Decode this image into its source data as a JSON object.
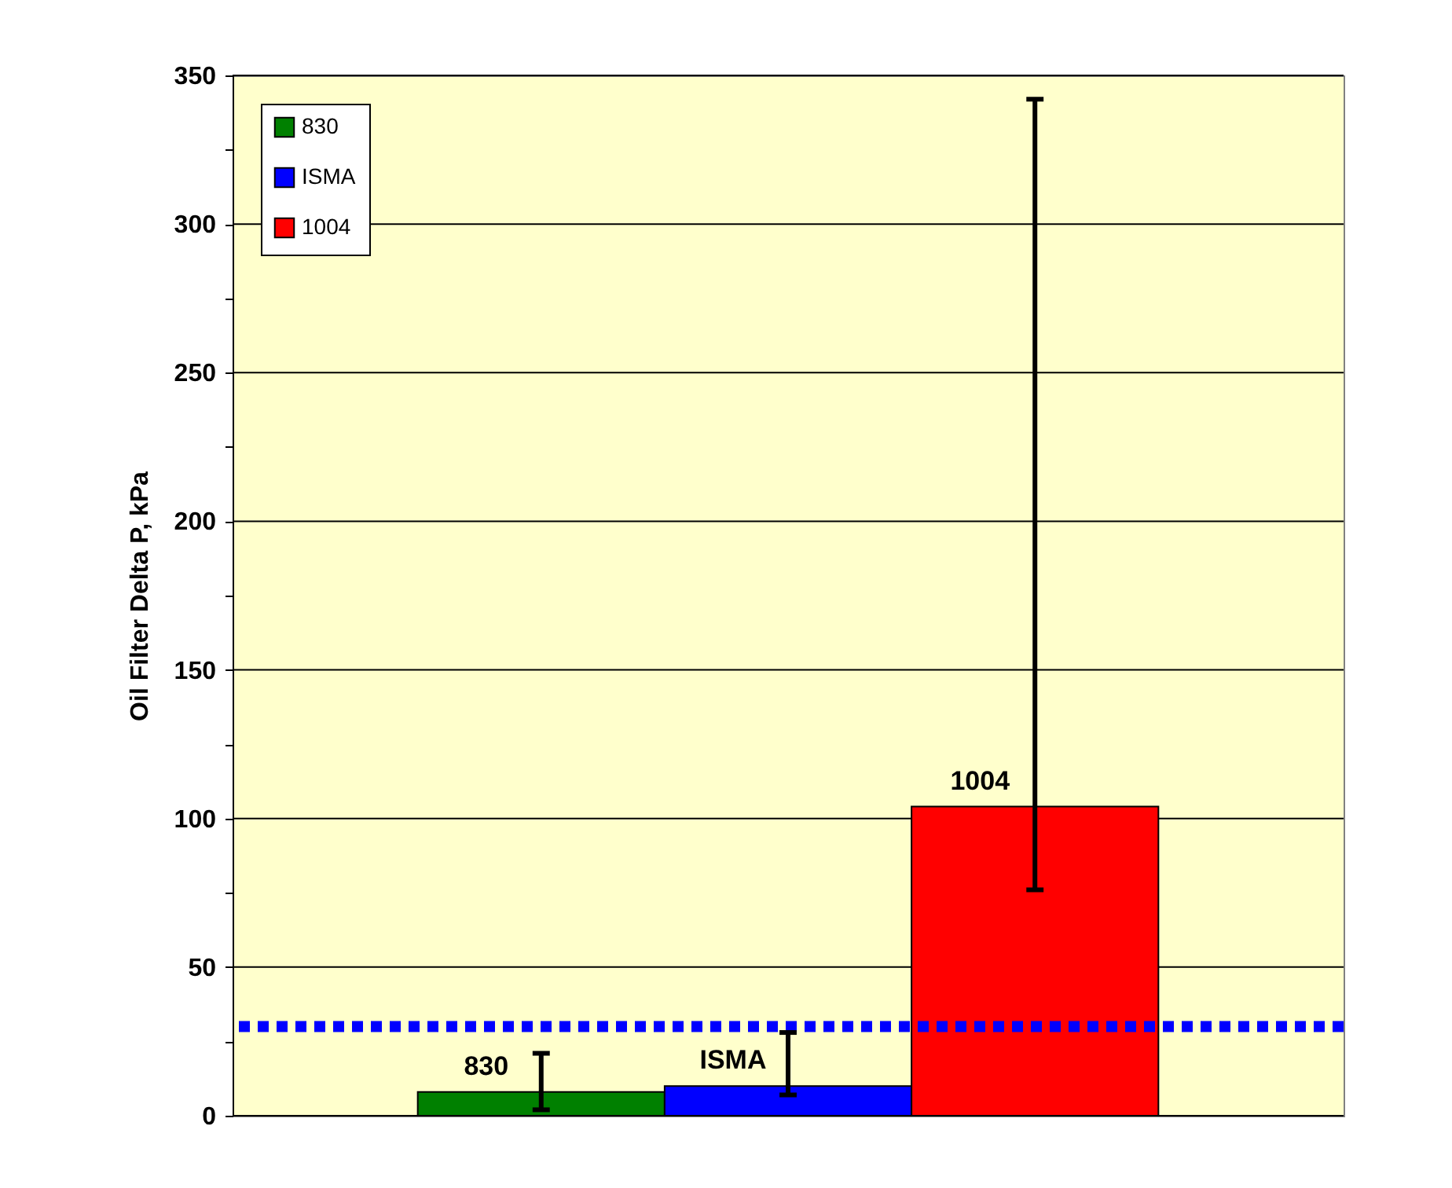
{
  "chart_data": {
    "type": "bar",
    "ylabel": "Oil Filter Delta P, kPa",
    "categories": [
      null
    ],
    "series": [
      {
        "name": "830",
        "color": "#008000",
        "values": [
          8
        ],
        "errors": [
          [
            2,
            21
          ]
        ]
      },
      {
        "name": "ISMA",
        "color": "#0000ff",
        "values": [
          10
        ],
        "errors": [
          [
            7,
            28
          ]
        ]
      },
      {
        "name": "1004",
        "color": "#ff0000",
        "values": [
          104
        ],
        "errors": [
          [
            76,
            342
          ]
        ]
      }
    ],
    "ylim": [
      0,
      350
    ],
    "yticks": [
      0,
      {
        "value": 25,
        "label": null
      },
      50,
      {
        "value": 75,
        "label": null
      },
      100,
      {
        "value": 125,
        "label": null
      },
      150,
      {
        "value": 175,
        "label": null
      },
      200,
      {
        "value": 225,
        "label": null
      },
      250,
      {
        "value": 275,
        "label": null
      },
      300,
      {
        "value": 325,
        "label": null
      },
      350
    ],
    "ref_lines": [
      {
        "axis": "y",
        "value": 30,
        "color": "#0000ff",
        "line_style": "dotted"
      }
    ],
    "grid": "y",
    "legend": "top left",
    "tick_labels": "y"
  }
}
